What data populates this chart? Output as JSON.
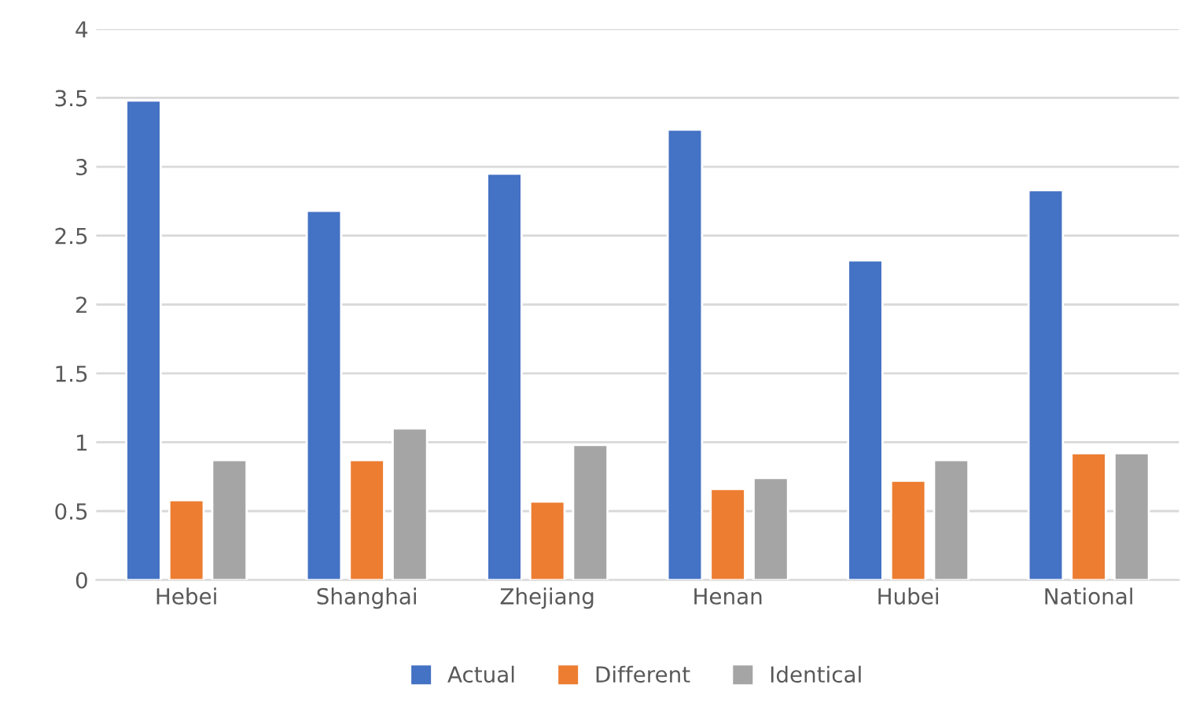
{
  "chart_data": {
    "type": "bar",
    "categories": [
      "Hebei",
      "Shanghai",
      "Zhejiang",
      "Henan",
      "Hubei",
      "National"
    ],
    "series": [
      {
        "name": "Actual",
        "color": "#4472c4",
        "values": [
          3.48,
          2.68,
          2.95,
          3.27,
          2.32,
          2.83
        ]
      },
      {
        "name": "Different",
        "color": "#ed7d31",
        "values": [
          0.58,
          0.87,
          0.57,
          0.66,
          0.72,
          0.92
        ]
      },
      {
        "name": "Identical",
        "color": "#a5a5a5",
        "values": [
          0.87,
          1.1,
          0.98,
          0.74,
          0.87,
          0.92
        ]
      }
    ],
    "ylim": [
      0,
      4
    ],
    "yticks": [
      0,
      0.5,
      1,
      1.5,
      2,
      2.5,
      3,
      3.5,
      4
    ],
    "grid": "y",
    "legend": "bottom"
  }
}
